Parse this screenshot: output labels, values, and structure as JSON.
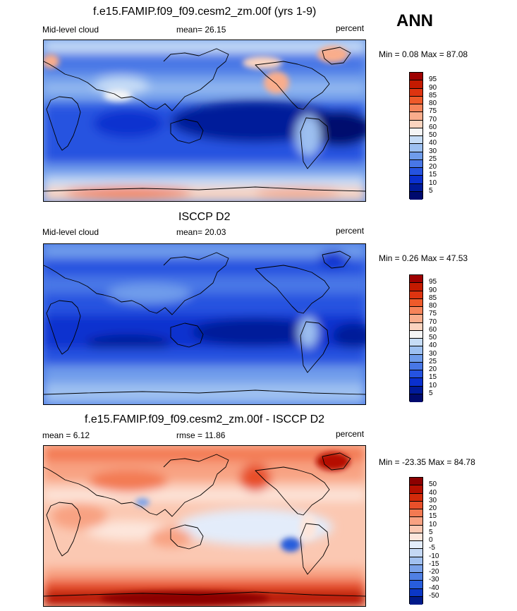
{
  "season_label": "ANN",
  "panels": [
    {
      "id": "model",
      "title": "f.e15.FAMIP.f09_f09.cesm2_zm.00f (yrs 1-9)",
      "left_label": "Mid-level cloud",
      "center_label": "mean=  26.15",
      "right_label": "percent",
      "minmax": "Min =   0.08 Max =  87.08",
      "scale": "abs",
      "levels": [
        "95",
        "90",
        "85",
        "80",
        "75",
        "70",
        "60",
        "50",
        "40",
        "30",
        "25",
        "20",
        "15",
        "10",
        "5"
      ]
    },
    {
      "id": "obs",
      "title": "ISCCP D2",
      "left_label": "Mid-level cloud",
      "center_label": "mean=  20.03",
      "right_label": "percent",
      "minmax": "Min =   0.26 Max =  47.53",
      "scale": "abs",
      "levels": [
        "95",
        "90",
        "85",
        "80",
        "75",
        "70",
        "60",
        "50",
        "40",
        "30",
        "25",
        "20",
        "15",
        "10",
        "5"
      ]
    },
    {
      "id": "diff",
      "title": "f.e15.FAMIP.f09_f09.cesm2_zm.00f - ISCCP D2",
      "left_label": "mean =   6.12",
      "center_label": "rmse =  11.86",
      "right_label": "percent",
      "minmax": "Min = -23.35 Max =  84.78",
      "scale": "diff",
      "levels": [
        "50",
        "40",
        "30",
        "20",
        "15",
        "10",
        "5",
        "0",
        "-5",
        "-10",
        "-15",
        "-20",
        "-30",
        "-40",
        "-50"
      ]
    }
  ],
  "colors": {
    "abs_scale": [
      "#9e0000",
      "#c41a00",
      "#de3410",
      "#ee5a2a",
      "#f6845a",
      "#f9ad8c",
      "#fbd4bf",
      "#f5f5f5",
      "#c6dcf6",
      "#9dc0f1",
      "#6f9ceb",
      "#4877e6",
      "#2553e0",
      "#0a30cf",
      "#001a9a",
      "#000a6e"
    ],
    "diff_scale": [
      "#8c0000",
      "#b50f00",
      "#d32a0a",
      "#e8502a",
      "#f37a52",
      "#f8a282",
      "#fbc8b2",
      "#fde6dc",
      "#e3ecfa",
      "#c4d8f5",
      "#a1c0f0",
      "#7aa2ea",
      "#5080e4",
      "#285ddc",
      "#0b37c6",
      "#001a8a"
    ]
  }
}
